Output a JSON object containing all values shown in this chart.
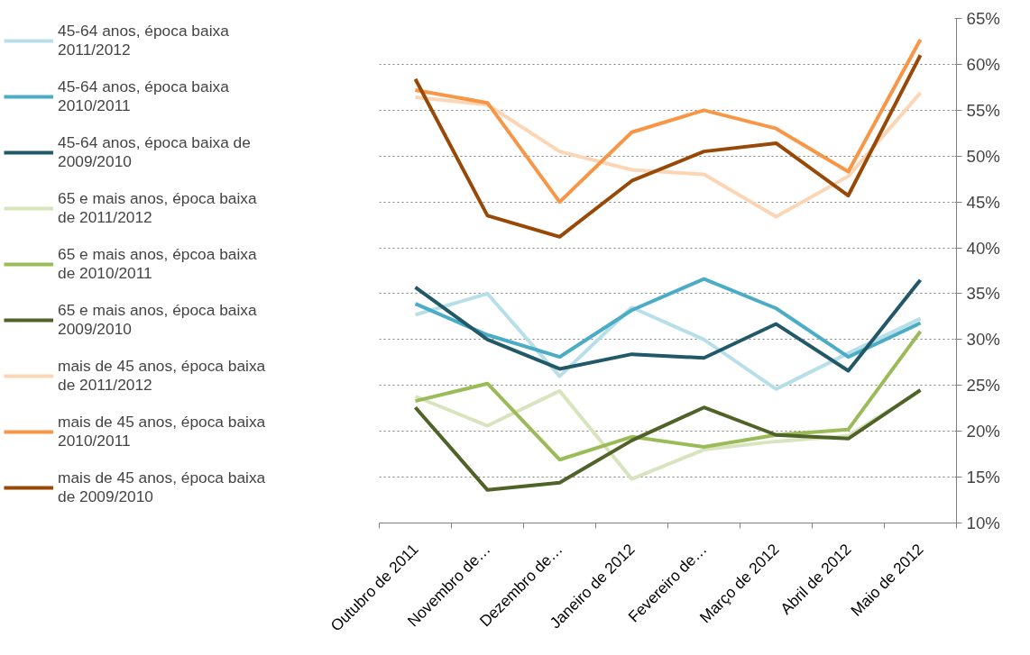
{
  "chart_data": {
    "type": "line",
    "categories": [
      "Outubro de 2011",
      "Novembro de…",
      "Dezembro de…",
      "Janeiro de 2012",
      "Fevereiro de…",
      "Março de 2012",
      "Abril de 2012",
      "Maio de 2012"
    ],
    "series": [
      {
        "name": "45-64 anos, época baixa 2011/2012",
        "color": "#b7dfe9",
        "values": [
          32.7,
          35,
          26,
          33.5,
          30,
          24.6,
          28.5,
          32.3
        ]
      },
      {
        "name": "45-64 anos, época baixa 2010/2011",
        "color": "#4bacc6",
        "values": [
          33.9,
          30.5,
          28.1,
          33.2,
          36.6,
          33.4,
          28.1,
          31.8
        ]
      },
      {
        "name": "45-64 anos, época baixa de 2009/2010",
        "color": "#215968",
        "values": [
          35.7,
          30,
          26.8,
          28.4,
          28,
          31.7,
          26.6,
          36.5
        ]
      },
      {
        "name": "65 e mais anos, época baixa de 2011/2012",
        "color": "#d7e4bd",
        "values": [
          23.8,
          20.6,
          24.4,
          14.8,
          18,
          18.9,
          19.5,
          24.4
        ]
      },
      {
        "name": "65 e mais anos, épcoa baixa de 2010/2011",
        "color": "#9bbb59",
        "values": [
          23.3,
          25.2,
          16.9,
          19.4,
          18.3,
          19.6,
          20.2,
          30.9
        ]
      },
      {
        "name": "65 e mais anos, época baixa 2009/2010",
        "color": "#4f6228",
        "values": [
          22.6,
          13.6,
          14.4,
          19,
          22.6,
          19.6,
          19.2,
          24.5
        ]
      },
      {
        "name": "mais de 45 anos, época baixa de 2011/2012",
        "color": "#fcd5b5",
        "values": [
          56.4,
          55.6,
          50.5,
          48.5,
          48,
          43.4,
          47.8,
          56.9
        ]
      },
      {
        "name": "mais de 45 anos, época baixa 2010/2011",
        "color": "#f79646",
        "values": [
          57.2,
          55.8,
          45,
          52.6,
          55,
          53,
          48.3,
          62.7
        ]
      },
      {
        "name": "mais de 45 anos, época baixa de 2009/2010",
        "color": "#984807",
        "values": [
          58.4,
          43.5,
          41.2,
          47.3,
          50.5,
          51.4,
          45.7,
          61
        ]
      }
    ],
    "ylim": [
      10,
      65
    ],
    "yticks": [
      {
        "value": 10,
        "label": "10%"
      },
      {
        "value": 15,
        "label": "15%"
      },
      {
        "value": 20,
        "label": "20%"
      },
      {
        "value": 25,
        "label": "25%"
      },
      {
        "value": 30,
        "label": "30%"
      },
      {
        "value": 35,
        "label": "35%"
      },
      {
        "value": 40,
        "label": "40%"
      },
      {
        "value": 45,
        "label": "45%"
      },
      {
        "value": 50,
        "label": "50%"
      },
      {
        "value": 55,
        "label": "55%"
      },
      {
        "value": 60,
        "label": "60%"
      },
      {
        "value": 65,
        "label": "65%"
      }
    ],
    "grid": "y",
    "legend": "left",
    "marker": "none",
    "line_style": "solid"
  }
}
